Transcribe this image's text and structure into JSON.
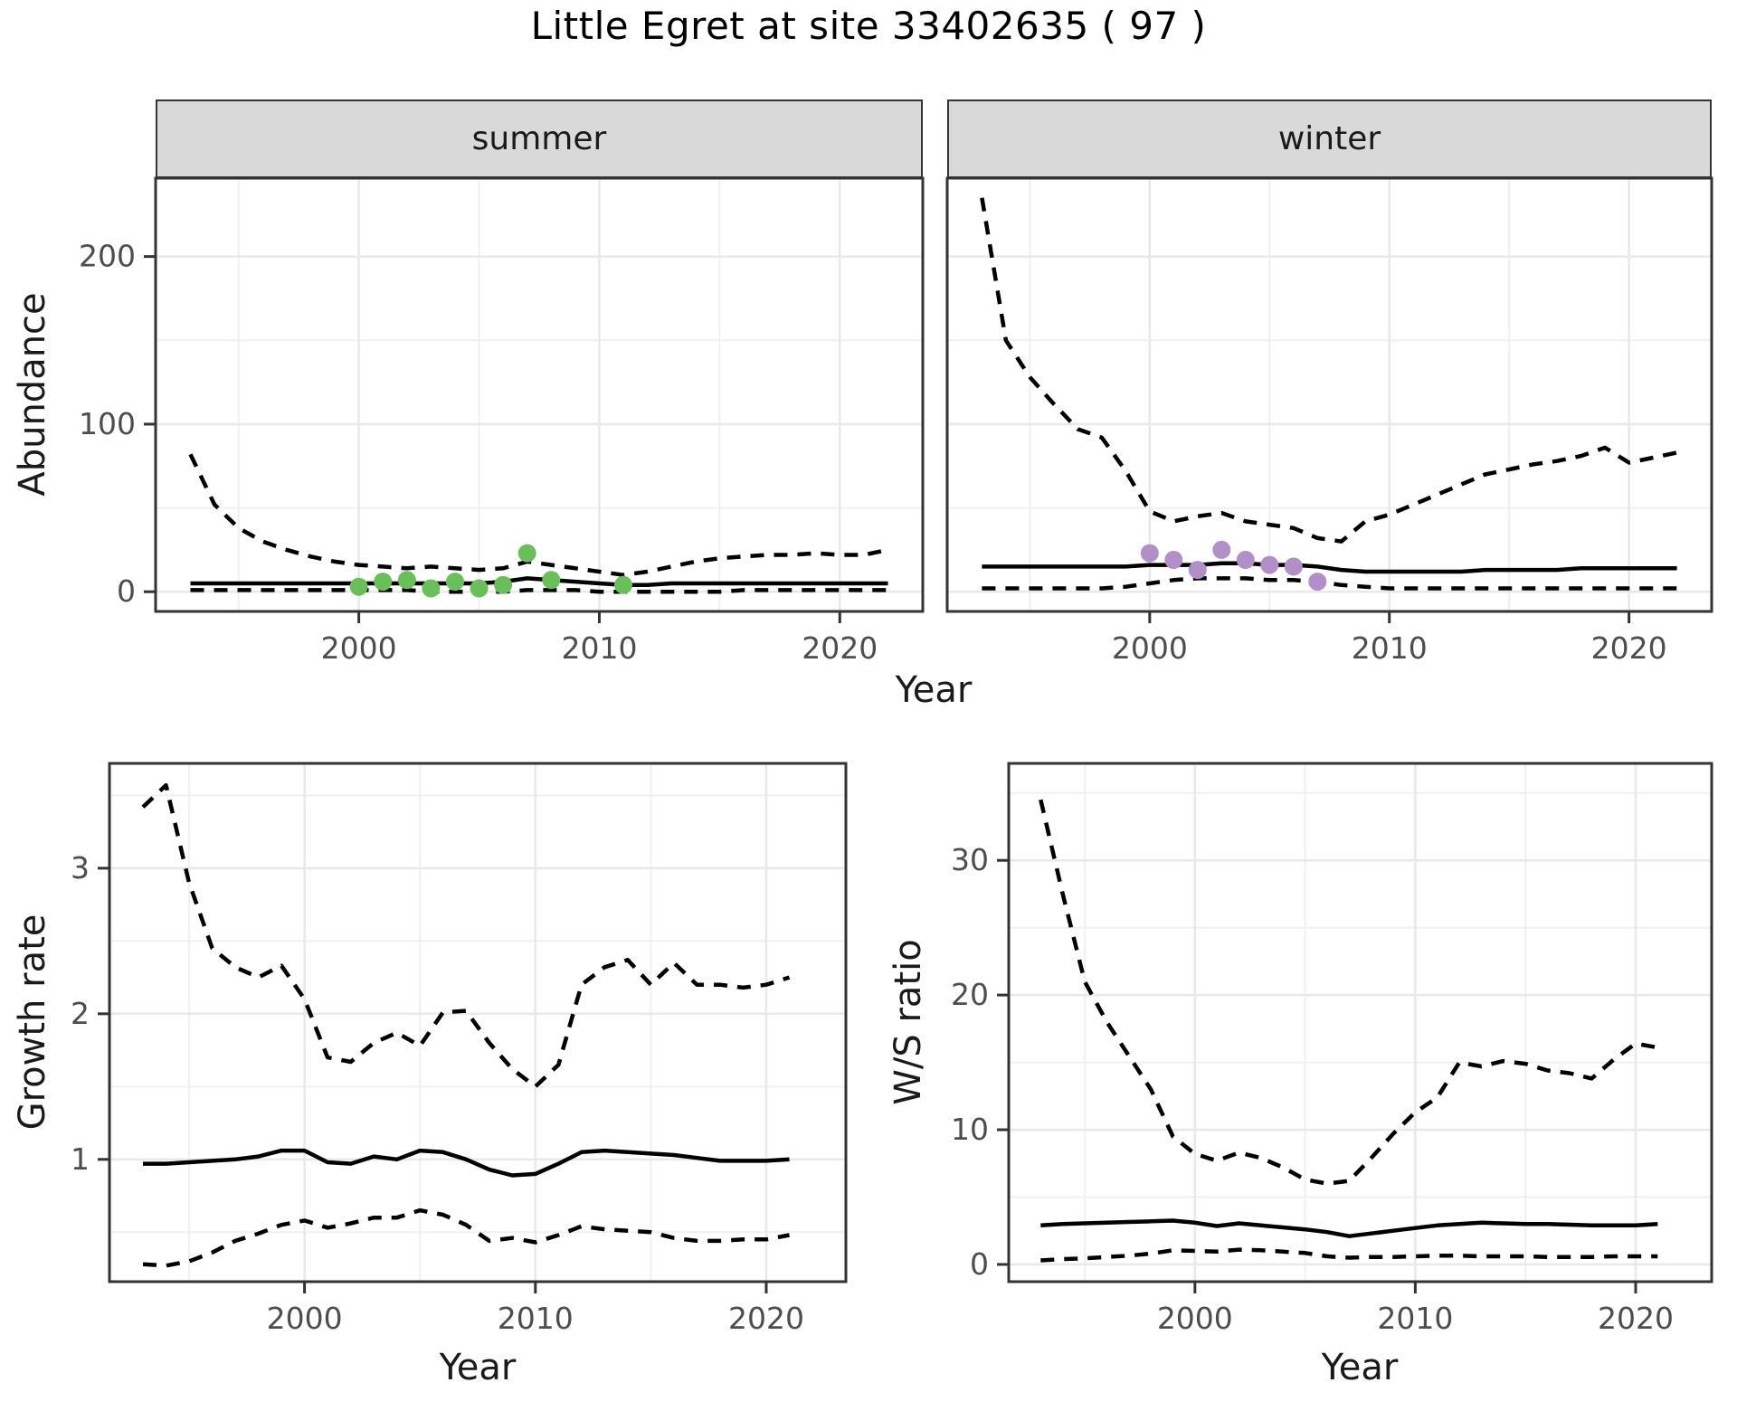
{
  "title": "Little Egret at site 33402635 ( 97 )",
  "axes": {
    "abundance_label": "Abundance",
    "top_x_label": "Year",
    "growth_label": "Growth rate",
    "growth_x_label": "Year",
    "ws_label": "W/S ratio",
    "ws_x_label": "Year"
  },
  "facets": {
    "summer": "summer",
    "winter": "winter"
  },
  "colors": {
    "background": "#ffffff",
    "line": "#000000",
    "summer_points": "#6abf5a",
    "winter_points": "#b18fc7",
    "strip_bg": "#d9d9d9",
    "panel_border": "#333333",
    "grid_major": "#e9e9e9",
    "grid_minor": "#f0f0f0",
    "tick_mark": "#333333",
    "tick_label": "#4d4d4d"
  },
  "chart_data": [
    {
      "id": "abundance_summer",
      "type": "line",
      "facet": "summer",
      "ylabel": "Abundance",
      "xlabel": "Year",
      "x": [
        1993,
        1994,
        1995,
        1996,
        1997,
        1998,
        1999,
        2000,
        2001,
        2002,
        2003,
        2004,
        2005,
        2006,
        2007,
        2008,
        2009,
        2010,
        2011,
        2012,
        2013,
        2014,
        2015,
        2016,
        2017,
        2018,
        2019,
        2020,
        2021,
        2022
      ],
      "series": [
        {
          "name": "upper_ci",
          "style": "dashed",
          "values": [
            82,
            52,
            38,
            30,
            25,
            21,
            18,
            16,
            15,
            14,
            15,
            14,
            13,
            14,
            18,
            16,
            14,
            12,
            10,
            12,
            15,
            18,
            20,
            21,
            22,
            22,
            23,
            22,
            22,
            25
          ]
        },
        {
          "name": "median",
          "style": "solid",
          "values": [
            5,
            5,
            5,
            5,
            5,
            5,
            5,
            5,
            5,
            5,
            5,
            5,
            5,
            6,
            8,
            7,
            6,
            5,
            4,
            4,
            5,
            5,
            5,
            5,
            5,
            5,
            5,
            5,
            5,
            5
          ]
        },
        {
          "name": "lower_ci",
          "style": "dashed",
          "values": [
            1,
            1,
            1,
            1,
            1,
            1,
            1,
            1,
            1,
            1,
            0,
            0,
            0,
            0,
            1,
            1,
            1,
            0,
            0,
            0,
            0,
            0,
            0,
            1,
            1,
            1,
            1,
            1,
            1,
            1
          ]
        }
      ],
      "points": {
        "name": "observed-summer",
        "color": "#6abf5a",
        "x": [
          2000,
          2001,
          2002,
          2003,
          2004,
          2005,
          2006,
          2007,
          2008,
          2011
        ],
        "y": [
          3,
          6,
          7,
          2,
          6,
          2,
          4,
          23,
          7,
          4
        ]
      },
      "xlim": [
        1991.55,
        2023.45
      ],
      "ylim": [
        -11.75,
        246.75
      ],
      "xticks": [
        2000,
        2010,
        2020
      ],
      "xtick_labels": [
        "2000",
        "2010",
        "2020"
      ],
      "yticks": [
        0,
        100,
        200
      ],
      "ytick_labels": [
        "0",
        "100",
        "200"
      ],
      "xminor": [
        1995,
        2005,
        2015
      ],
      "yminor": [
        50,
        150,
        250
      ],
      "show_ytick_labels": true
    },
    {
      "id": "abundance_winter",
      "type": "line",
      "facet": "winter",
      "ylabel": "Abundance",
      "xlabel": "Year",
      "x": [
        1993,
        1994,
        1995,
        1996,
        1997,
        1998,
        1999,
        2000,
        2001,
        2002,
        2003,
        2004,
        2005,
        2006,
        2007,
        2008,
        2009,
        2010,
        2011,
        2012,
        2013,
        2014,
        2015,
        2016,
        2017,
        2018,
        2019,
        2020,
        2021,
        2022
      ],
      "series": [
        {
          "name": "upper_ci",
          "style": "dashed",
          "values": [
            235,
            150,
            128,
            112,
            97,
            92,
            72,
            48,
            42,
            45,
            47,
            42,
            40,
            38,
            32,
            30,
            42,
            46,
            52,
            58,
            64,
            70,
            73,
            76,
            78,
            81,
            86,
            77,
            80,
            83
          ]
        },
        {
          "name": "median",
          "style": "solid",
          "values": [
            15,
            15,
            15,
            15,
            15,
            15,
            15,
            16,
            16,
            16,
            17,
            17,
            16,
            16,
            15,
            13,
            12,
            12,
            12,
            12,
            12,
            13,
            13,
            13,
            13,
            14,
            14,
            14,
            14,
            14
          ]
        },
        {
          "name": "lower_ci",
          "style": "dashed",
          "values": [
            2,
            2,
            2,
            2,
            2,
            2,
            3,
            5,
            7,
            8,
            8,
            8,
            7,
            7,
            6,
            4,
            3,
            2,
            2,
            2,
            2,
            2,
            2,
            2,
            2,
            2,
            2,
            2,
            2,
            2
          ]
        }
      ],
      "points": {
        "name": "observed-winter",
        "color": "#b18fc7",
        "x": [
          2000,
          2001,
          2002,
          2003,
          2004,
          2005,
          2006,
          2007
        ],
        "y": [
          23,
          19,
          13,
          25,
          19,
          16,
          15,
          6
        ]
      },
      "xlim": [
        1991.55,
        2023.45
      ],
      "ylim": [
        -11.75,
        246.75
      ],
      "xticks": [
        2000,
        2010,
        2020
      ],
      "xtick_labels": [
        "2000",
        "2010",
        "2020"
      ],
      "yticks": [
        0,
        100,
        200
      ],
      "ytick_labels": [
        "0",
        "100",
        "200"
      ],
      "xminor": [
        1995,
        2005,
        2015
      ],
      "yminor": [
        50,
        150,
        250
      ],
      "show_ytick_labels": false
    },
    {
      "id": "growth_rate",
      "type": "line",
      "ylabel": "Growth rate",
      "xlabel": "Year",
      "x": [
        1993,
        1994,
        1995,
        1996,
        1997,
        1998,
        1999,
        2000,
        2001,
        2002,
        2003,
        2004,
        2005,
        2006,
        2007,
        2008,
        2009,
        2010,
        2011,
        2012,
        2013,
        2014,
        2015,
        2016,
        2017,
        2018,
        2019,
        2020,
        2021
      ],
      "series": [
        {
          "name": "upper_ci",
          "style": "dashed",
          "values": [
            3.42,
            3.57,
            2.9,
            2.45,
            2.32,
            2.25,
            2.33,
            2.1,
            1.7,
            1.67,
            1.8,
            1.87,
            1.78,
            2.01,
            2.02,
            1.8,
            1.62,
            1.5,
            1.65,
            2.2,
            2.32,
            2.37,
            2.2,
            2.35,
            2.2,
            2.2,
            2.18,
            2.2,
            2.25
          ]
        },
        {
          "name": "median",
          "style": "solid",
          "values": [
            0.97,
            0.97,
            0.98,
            0.99,
            1.0,
            1.02,
            1.06,
            1.06,
            0.98,
            0.97,
            1.02,
            1.0,
            1.06,
            1.05,
            1.0,
            0.93,
            0.89,
            0.9,
            0.97,
            1.05,
            1.06,
            1.05,
            1.04,
            1.03,
            1.01,
            0.99,
            0.99,
            0.99,
            1.0
          ]
        },
        {
          "name": "lower_ci",
          "style": "dashed",
          "values": [
            0.28,
            0.27,
            0.3,
            0.36,
            0.44,
            0.49,
            0.55,
            0.58,
            0.53,
            0.56,
            0.6,
            0.6,
            0.65,
            0.62,
            0.55,
            0.44,
            0.46,
            0.43,
            0.48,
            0.54,
            0.52,
            0.51,
            0.5,
            0.46,
            0.44,
            0.44,
            0.45,
            0.45,
            0.48
          ]
        }
      ],
      "xlim": [
        1991.55,
        2023.45
      ],
      "ylim": [
        0.16,
        3.72
      ],
      "xticks": [
        2000,
        2010,
        2020
      ],
      "xtick_labels": [
        "2000",
        "2010",
        "2020"
      ],
      "yticks": [
        1,
        2,
        3
      ],
      "ytick_labels": [
        "1",
        "2",
        "3"
      ],
      "xminor": [
        1995,
        2005,
        2015
      ],
      "yminor": [
        0.5,
        1.5,
        2.5,
        3.5
      ],
      "show_ytick_labels": true
    },
    {
      "id": "ws_ratio",
      "type": "line",
      "ylabel": "W/S ratio",
      "xlabel": "Year",
      "x": [
        1993,
        1994,
        1995,
        1996,
        1997,
        1998,
        1999,
        2000,
        2001,
        2002,
        2003,
        2004,
        2005,
        2006,
        2007,
        2008,
        2009,
        2010,
        2011,
        2012,
        2013,
        2014,
        2015,
        2016,
        2017,
        2018,
        2019,
        2020,
        2021
      ],
      "series": [
        {
          "name": "upper_ci",
          "style": "dashed",
          "values": [
            34.5,
            27.5,
            21,
            18,
            15.5,
            13,
            9.5,
            8.2,
            7.7,
            8.3,
            7.9,
            7.2,
            6.3,
            6.0,
            6.2,
            7.9,
            9.7,
            11.3,
            12.4,
            15.0,
            14.7,
            15.1,
            14.9,
            14.4,
            14.2,
            13.8,
            15.2,
            16.4,
            16.1
          ]
        },
        {
          "name": "median",
          "style": "solid",
          "values": [
            2.9,
            3.0,
            3.05,
            3.1,
            3.15,
            3.2,
            3.25,
            3.1,
            2.85,
            3.05,
            2.9,
            2.75,
            2.6,
            2.4,
            2.1,
            2.3,
            2.5,
            2.7,
            2.9,
            3.0,
            3.1,
            3.05,
            3.0,
            3.0,
            2.95,
            2.9,
            2.9,
            2.9,
            3.0
          ]
        },
        {
          "name": "lower_ci",
          "style": "dashed",
          "values": [
            0.3,
            0.4,
            0.45,
            0.55,
            0.65,
            0.8,
            1.05,
            1.0,
            0.95,
            1.1,
            1.05,
            0.95,
            0.85,
            0.6,
            0.5,
            0.55,
            0.55,
            0.6,
            0.65,
            0.65,
            0.6,
            0.6,
            0.6,
            0.55,
            0.55,
            0.55,
            0.6,
            0.6,
            0.6
          ]
        }
      ],
      "xlim": [
        1991.55,
        2023.45
      ],
      "ylim": [
        -1.28,
        37.2
      ],
      "xticks": [
        2000,
        2010,
        2020
      ],
      "xtick_labels": [
        "2000",
        "2010",
        "2020"
      ],
      "yticks": [
        0,
        10,
        20,
        30
      ],
      "ytick_labels": [
        "0",
        "10",
        "20",
        "30"
      ],
      "xminor": [
        1995,
        2005,
        2015
      ],
      "yminor": [
        5,
        15,
        25,
        35
      ],
      "show_ytick_labels": true
    }
  ]
}
